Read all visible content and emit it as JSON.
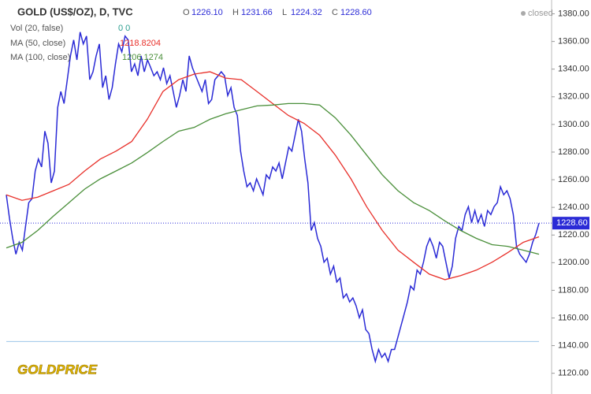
{
  "chart_data": {
    "type": "line",
    "series": [
      {
        "name": "GOLD (US$/OZ), D, TVC",
        "color": "#2b2bd6",
        "values": [
          1249.1,
          1231.9,
          1217.6,
          1206.1,
          1214.7,
          1209.0,
          1226.2,
          1243.4,
          1246.3,
          1266.3,
          1275.0,
          1269.2,
          1295.1,
          1286.4,
          1257.7,
          1266.3,
          1312.3,
          1323.8,
          1315.1,
          1332.4,
          1349.6,
          1361.1,
          1346.7,
          1366.8,
          1358.2,
          1363.9,
          1332.4,
          1338.1,
          1349.6,
          1358.2,
          1326.6,
          1335.2,
          1318.0,
          1326.6,
          1343.8,
          1358.2,
          1352.5,
          1363.9,
          1361.1,
          1338.1,
          1343.8,
          1335.2,
          1349.6,
          1338.1,
          1346.7,
          1341.0,
          1335.2,
          1338.1,
          1332.4,
          1341.0,
          1329.5,
          1335.2,
          1323.8,
          1312.3,
          1320.9,
          1332.4,
          1323.8,
          1349.6,
          1341.0,
          1335.2,
          1329.5,
          1323.8,
          1332.4,
          1315.1,
          1318.0,
          1332.4,
          1335.2,
          1338.1,
          1335.2,
          1320.9,
          1326.6,
          1312.3,
          1306.5,
          1280.7,
          1266.3,
          1254.9,
          1257.7,
          1252.0,
          1260.6,
          1254.9,
          1249.1,
          1263.5,
          1260.6,
          1269.2,
          1266.3,
          1272.1,
          1260.6,
          1272.1,
          1283.6,
          1280.7,
          1292.2,
          1303.7,
          1295.1,
          1275.0,
          1257.7,
          1223.3,
          1229.0,
          1217.6,
          1211.8,
          1200.3,
          1203.2,
          1191.7,
          1197.5,
          1186.0,
          1188.9,
          1174.5,
          1177.4,
          1171.6,
          1174.5,
          1168.8,
          1160.2,
          1165.9,
          1151.6,
          1148.7,
          1137.2,
          1128.6,
          1137.2,
          1131.5,
          1134.4,
          1128.6,
          1137.2,
          1137.2,
          1145.8,
          1154.4,
          1163.0,
          1171.6,
          1183.1,
          1180.3,
          1194.6,
          1191.7,
          1200.3,
          1211.8,
          1217.6,
          1211.8,
          1203.2,
          1214.7,
          1211.8,
          1200.3,
          1188.9,
          1197.5,
          1217.6,
          1226.2,
          1223.3,
          1234.8,
          1240.5,
          1229.0,
          1237.7,
          1229.0,
          1234.8,
          1226.2,
          1237.7,
          1234.8,
          1240.5,
          1243.4,
          1254.9,
          1249.1,
          1252.0,
          1246.3,
          1234.8,
          1211.8,
          1206.1,
          1203.2,
          1200.3,
          1206.1,
          1214.7,
          1220.4,
          1228.6
        ]
      },
      {
        "name": "MA (50, close)",
        "color": "#e8302a",
        "value_label": "1218.8204",
        "values": [
          1249.1,
          1245.1,
          1247.4,
          1252.0,
          1256.6,
          1266.3,
          1275.0,
          1280.7,
          1287.6,
          1303.7,
          1323.8,
          1332.4,
          1336.4,
          1338.1,
          1333.5,
          1332.4,
          1323.8,
          1315.1,
          1306.5,
          1300.8,
          1292.2,
          1277.8,
          1260.6,
          1240.5,
          1223.3,
          1209.0,
          1200.3,
          1191.7,
          1187.7,
          1190.6,
          1194.6,
          1200.3,
          1207.2,
          1214.7,
          1218.7
        ]
      },
      {
        "name": "MA (100, close)",
        "color": "#4a8f3a",
        "value_label": "1206.1274",
        "values": [
          1210.7,
          1214.7,
          1223.3,
          1233.6,
          1243.4,
          1253.2,
          1260.6,
          1266.3,
          1272.1,
          1279.6,
          1287.6,
          1295.1,
          1297.9,
          1303.7,
          1307.7,
          1310.6,
          1313.4,
          1314.0,
          1315.1,
          1315.1,
          1314.0,
          1304.8,
          1292.2,
          1277.8,
          1263.5,
          1252.0,
          1243.4,
          1237.7,
          1230.2,
          1223.3,
          1217.6,
          1213.0,
          1211.8,
          1209.0,
          1206.1
        ]
      }
    ],
    "ohlc": [
      {
        "label": "O",
        "value": "1226.10"
      },
      {
        "label": "H",
        "value": "1231.66"
      },
      {
        "label": "L",
        "value": "1224.32"
      },
      {
        "label": "C",
        "value": "1228.60"
      }
    ],
    "indicator": {
      "name": "Vol (20, false)",
      "value": "0 0"
    },
    "last_price": {
      "value": 1228.6,
      "label": "1228.60"
    },
    "reference_line": 1143,
    "status": "closed",
    "logo": "GOLDPRICE",
    "ylim": [
      1105,
      1390
    ],
    "yticks": [
      {
        "value": 1120,
        "label": "1120.00"
      },
      {
        "value": 1140,
        "label": "1140.00"
      },
      {
        "value": 1160,
        "label": "1160.00"
      },
      {
        "value": 1180,
        "label": "1180.00"
      },
      {
        "value": 1200,
        "label": "1200.00"
      },
      {
        "value": 1220,
        "label": "1220.00"
      },
      {
        "value": 1240,
        "label": "1240.00"
      },
      {
        "value": 1260,
        "label": "1260.00"
      },
      {
        "value": 1280,
        "label": "1280.00"
      },
      {
        "value": 1300,
        "label": "1300.00"
      },
      {
        "value": 1320,
        "label": "1320.00"
      },
      {
        "value": 1340,
        "label": "1340.00"
      },
      {
        "value": 1360,
        "label": "1360.00"
      },
      {
        "value": 1380,
        "label": "1380.00"
      }
    ]
  }
}
